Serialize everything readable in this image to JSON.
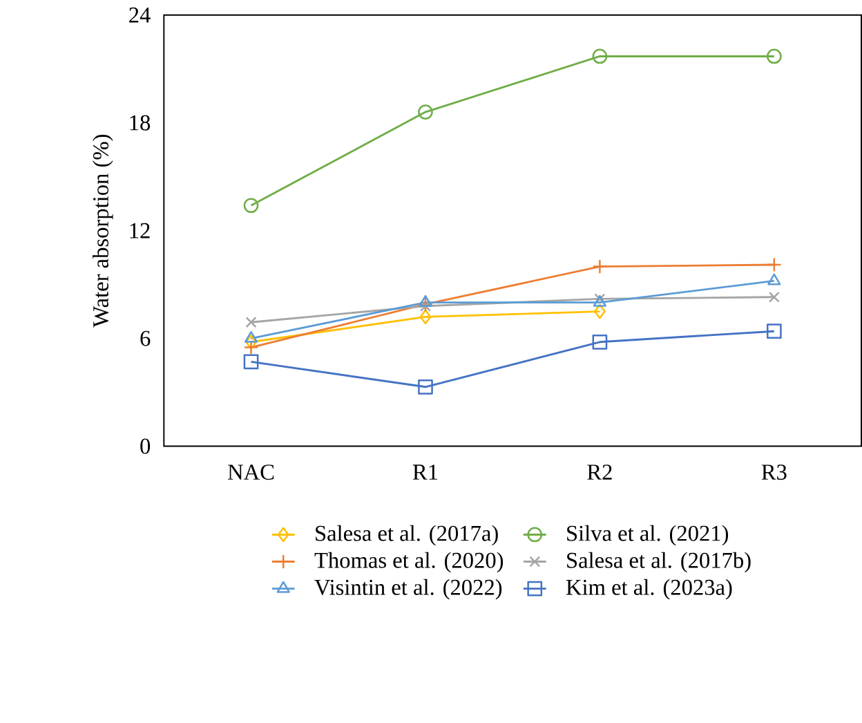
{
  "chart_data": {
    "type": "line",
    "ylabel": "Water absorption (%)",
    "categories": [
      "NAC",
      "R1",
      "R2",
      "R3"
    ],
    "ylim": [
      0,
      24
    ],
    "yticks": [
      0,
      6,
      12,
      18,
      24
    ],
    "grid": false,
    "legend": "bottom",
    "line_style": "solid",
    "series": [
      {
        "name": "Salesa et al. (2017a)",
        "color": "#ffc000",
        "marker": "diamond",
        "values": [
          5.8,
          7.2,
          7.5,
          null
        ]
      },
      {
        "name": "Silva et al. (2021)",
        "color": "#70ad47",
        "marker": "circle",
        "values": [
          13.4,
          18.6,
          21.7,
          21.7
        ]
      },
      {
        "name": "Thomas et al. (2020)",
        "color": "#ed7d31",
        "marker": "plus",
        "values": [
          5.5,
          7.9,
          10.0,
          10.1
        ]
      },
      {
        "name": "Salesa et al. (2017b)",
        "color": "#a5a5a5",
        "marker": "cross",
        "values": [
          6.9,
          7.8,
          8.2,
          8.3
        ]
      },
      {
        "name": "Visintin et al. (2022)",
        "color": "#5b9bd5",
        "marker": "triangle",
        "values": [
          6.0,
          8.0,
          8.0,
          9.2
        ]
      },
      {
        "name": "Kim et al. (2023a)",
        "color": "#4472c4",
        "marker": "square",
        "values": [
          4.7,
          3.3,
          5.8,
          6.4
        ]
      }
    ]
  }
}
